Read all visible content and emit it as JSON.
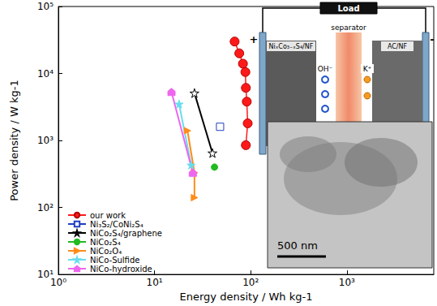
{
  "chart_data": {
    "type": "line",
    "x_label": "Energy density / Wh kg-1",
    "y_label": "Power density / W kg-1",
    "log": true,
    "grid": false,
    "legend": "lower left",
    "xlim": [
      1,
      8000
    ],
    "xticks": [
      {
        "value": 1,
        "label": "10⁰"
      },
      {
        "value": 10,
        "label": "10¹"
      },
      {
        "value": 100,
        "label": "10²"
      },
      {
        "value": 1000,
        "label": "10³"
      }
    ],
    "ylim": [
      10,
      100000
    ],
    "yticks": [
      {
        "value": 10,
        "label": "10¹"
      },
      {
        "value": 100,
        "label": "10²"
      },
      {
        "value": 1000,
        "label": "10³"
      },
      {
        "value": 10000,
        "label": "10⁴"
      },
      {
        "value": 100000,
        "label": "10⁵"
      }
    ],
    "series": [
      {
        "name": "our work",
        "color": "#ff1a1a",
        "marker": "circle",
        "x": [
          68,
          76,
          83,
          88,
          89,
          91,
          93,
          89
        ],
        "values": [
          30000,
          20000,
          14000,
          10500,
          6100,
          3800,
          1800,
          850
        ]
      },
      {
        "name": "Ni₃S₂/CoNi₂S₄",
        "color": "#1f3fbf",
        "marker": "square",
        "x": [
          48
        ],
        "values": [
          1600
        ]
      },
      {
        "name": "NiCo₂S₄/graphene",
        "color": "#000000",
        "marker": "star_open",
        "x": [
          26,
          40
        ],
        "values": [
          5100,
          650
        ]
      },
      {
        "name": "NiCo₂S₄",
        "color": "#22bb22",
        "marker": "circle",
        "x": [
          42
        ],
        "values": [
          400
        ]
      },
      {
        "name": "NiCo₂O₄",
        "color": "#ff8c1a",
        "marker": "triangle_right",
        "x": [
          22,
          26,
          26
        ],
        "values": [
          1400,
          330,
          140
        ]
      },
      {
        "name": "NiCo-Sulfide",
        "color": "#66ddee",
        "marker": "star",
        "x": [
          18,
          24
        ],
        "values": [
          3500,
          430
        ]
      },
      {
        "name": "NiCo-hydroxide",
        "color": "#ee66ee",
        "marker": "pentagon",
        "x": [
          15,
          25
        ],
        "values": [
          5300,
          330
        ]
      }
    ],
    "annotations": {
      "load": "Load",
      "positive": "+",
      "negative": "-",
      "left_electrode": "NiₓCo₃₋ₓS₄/NF",
      "separator": "separator",
      "anion": "OH⁻",
      "cation": "K⁺",
      "right_electrode": "AC/NF",
      "scale_bar": "500 nm"
    }
  }
}
